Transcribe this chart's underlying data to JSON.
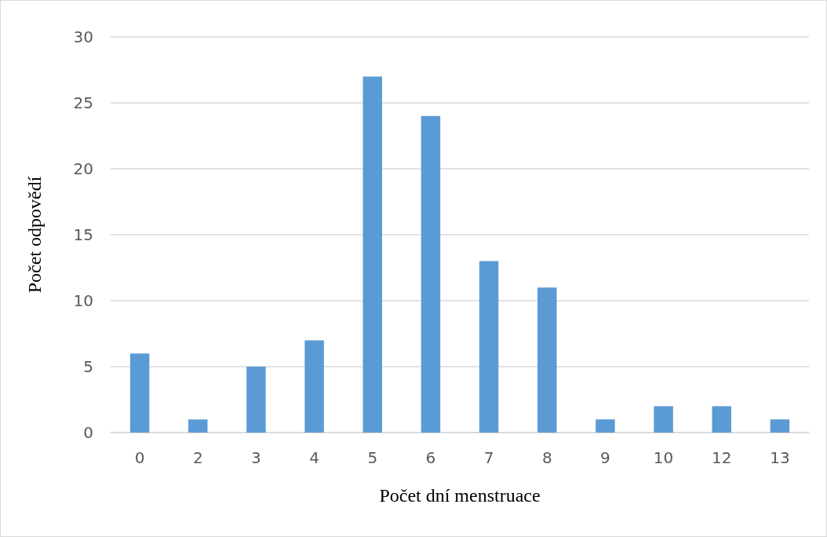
{
  "chart_data": {
    "type": "bar",
    "xlabel": "Počet dní menstruace",
    "ylabel": "Počet odpovědí",
    "categories": [
      "0",
      "2",
      "3",
      "4",
      "5",
      "6",
      "7",
      "8",
      "9",
      "10",
      "12",
      "13"
    ],
    "values": [
      6,
      1,
      5,
      7,
      27,
      24,
      13,
      11,
      1,
      2,
      2,
      1
    ],
    "color": "#5b9bd5",
    "ylim": [
      0,
      30
    ],
    "yticks": [
      0,
      5,
      10,
      15,
      20,
      25,
      30
    ],
    "grid": "y"
  }
}
